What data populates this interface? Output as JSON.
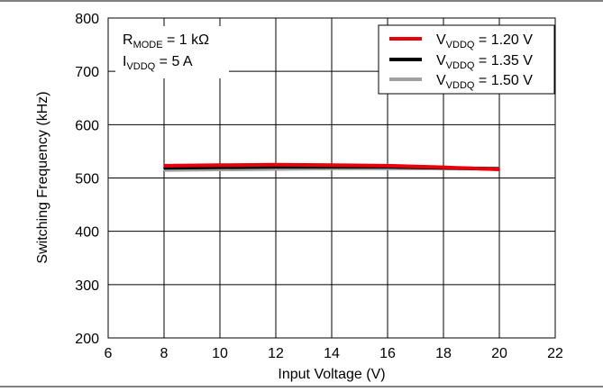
{
  "chart_data": {
    "type": "line",
    "xlabel": "Input Voltage (V)",
    "ylabel": "Switching Frequency (kHz)",
    "xlim": [
      6,
      22
    ],
    "ylim": [
      200,
      800
    ],
    "xticks": [
      6,
      8,
      10,
      12,
      14,
      16,
      18,
      20,
      22
    ],
    "yticks": [
      200,
      300,
      400,
      500,
      600,
      700,
      800
    ],
    "grid": true,
    "legend_position": "top-right",
    "annotation": {
      "line1_main": "R",
      "line1_sub": "MODE",
      "line1_rest": " = 1 kΩ",
      "line2_main": "I",
      "line2_sub": "VDDQ",
      "line2_rest": " = 5 A"
    },
    "series": [
      {
        "legend_main": "V",
        "legend_sub": "VDDQ",
        "legend_rest": " = 1.20 V",
        "color": "#e8000b",
        "x": [
          8,
          10,
          12,
          14,
          16,
          18,
          20
        ],
        "y": [
          523,
          524,
          525,
          524,
          523,
          520,
          516
        ]
      },
      {
        "legend_main": "V",
        "legend_sub": "VDDQ",
        "legend_rest": " = 1.35 V",
        "color": "#000000",
        "x": [
          8,
          10,
          12,
          14,
          16,
          18,
          20
        ],
        "y": [
          519,
          520,
          521,
          521,
          521,
          519,
          517
        ]
      },
      {
        "legend_main": "V",
        "legend_sub": "VDDQ",
        "legend_rest": " = 1.50 V",
        "color": "#a0a0a0",
        "x": [
          8,
          10,
          12,
          14,
          16,
          18,
          20
        ],
        "y": [
          515,
          516,
          517,
          518,
          518,
          518,
          518
        ]
      }
    ]
  }
}
